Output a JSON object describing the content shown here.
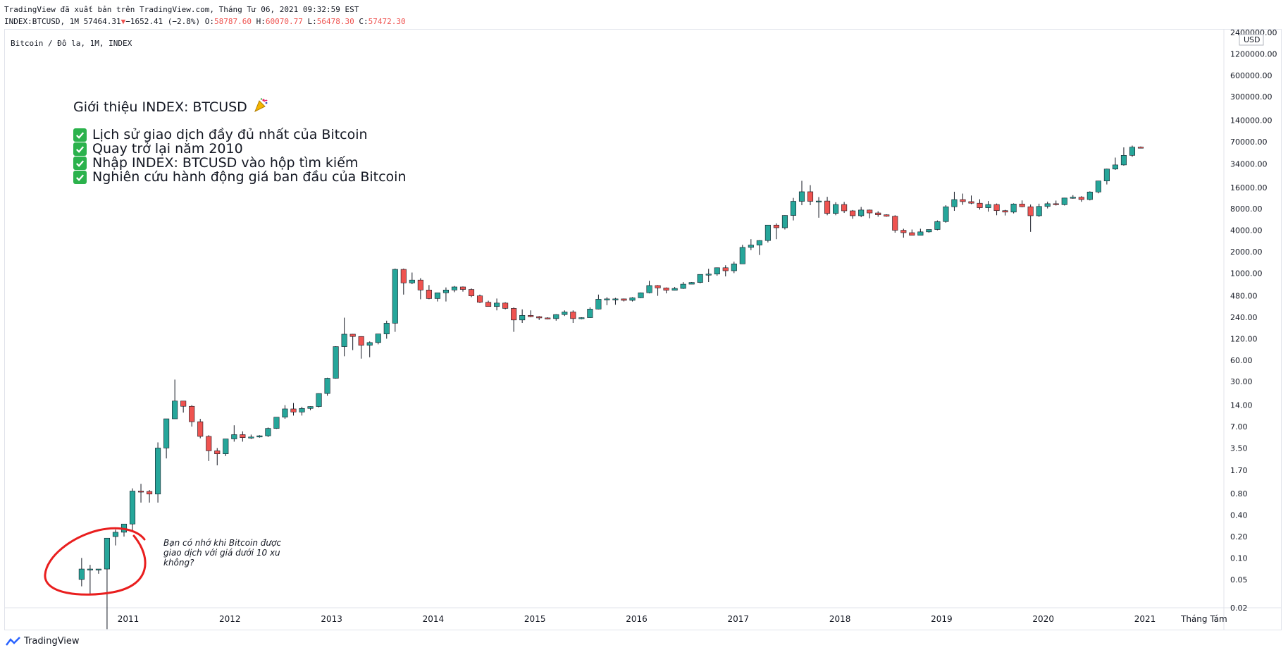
{
  "header": {
    "line1": "TradingView đã xuất bản trên TradingView.com, Tháng Tư 06, 2021 09:32:59 EST",
    "symbol": "INDEX:BTCUSD, 1M 57464.31",
    "change": "−1652.41 (−2.8%)",
    "o_label": "O:",
    "o_value": "58787.60",
    "h_label": "H:",
    "h_value": "60070.77",
    "l_label": "L:",
    "l_value": "56478.30",
    "c_label": "C:",
    "c_value": "57472.30"
  },
  "symbol_description": "Bitcoin / Đô la, 1M, INDEX",
  "notes": {
    "title": "Giới thiệu INDEX: BTCUSD",
    "items": [
      "Lịch sử giao dịch đầy đủ nhất của Bitcoin",
      "Quay trở lại năm 2010",
      "Nhập INDEX: BTCUSD vào hộp tìm kiếm",
      "Nghiên cứu hành động giá ban đầu của Bitcoin"
    ]
  },
  "annotation": "Bạn có nhớ khi Bitcoin được giao dịch với giá dưới 10 xu không?",
  "footer": {
    "brand": "TradingView"
  },
  "colors": {
    "up": "#26a69a",
    "down": "#ef5350",
    "circle": "#e91e1e",
    "grid": "#e0e3eb"
  },
  "chart_data": {
    "type": "candlestick",
    "title": "Bitcoin / Đô la, 1M, INDEX",
    "yscale": "log",
    "ylim": [
      0.02,
      2400000
    ],
    "currency_label": "USD",
    "x_tick_labels": [
      "2011",
      "2012",
      "2013",
      "2014",
      "2015",
      "2016",
      "2017",
      "2018",
      "2019",
      "2020",
      "2021"
    ],
    "x_extra_label": "Tháng Tám",
    "y_tick_labels": [
      "2400000.00",
      "1200000.00",
      "600000.00",
      "300000.00",
      "140000.00",
      "70000.00",
      "34000.00",
      "16000.00",
      "8000.00",
      "4000.00",
      "2000.00",
      "1000.00",
      "480.00",
      "240.00",
      "120.00",
      "60.00",
      "30.00",
      "14.00",
      "7.00",
      "3.50",
      "1.70",
      "0.80",
      "0.40",
      "0.20",
      "0.10",
      "0.05",
      "0.02"
    ],
    "start_month": "2010-07",
    "candles": [
      [
        0.05,
        0.1,
        0.04,
        0.07
      ],
      [
        0.07,
        0.08,
        0.03,
        0.07
      ],
      [
        0.07,
        0.07,
        0.06,
        0.07
      ],
      [
        0.07,
        0.19,
        0.01,
        0.19
      ],
      [
        0.2,
        0.25,
        0.15,
        0.23
      ],
      [
        0.23,
        0.3,
        0.2,
        0.3
      ],
      [
        0.3,
        0.95,
        0.24,
        0.87
      ],
      [
        0.87,
        1.1,
        0.6,
        0.86
      ],
      [
        0.86,
        0.9,
        0.6,
        0.79
      ],
      [
        0.79,
        4.2,
        0.6,
        3.5
      ],
      [
        3.5,
        9.0,
        2.5,
        9.0
      ],
      [
        9.0,
        32.0,
        9.0,
        16.0
      ],
      [
        16.0,
        16.0,
        11.0,
        13.5
      ],
      [
        13.5,
        14.0,
        7.0,
        8.2
      ],
      [
        8.2,
        9.0,
        4.8,
        5.1
      ],
      [
        5.1,
        5.3,
        2.3,
        3.2
      ],
      [
        3.2,
        3.5,
        2.0,
        2.9
      ],
      [
        2.9,
        4.5,
        2.7,
        4.7
      ],
      [
        4.7,
        7.3,
        4.3,
        5.4
      ],
      [
        5.4,
        6.0,
        4.3,
        4.9
      ],
      [
        4.9,
        5.4,
        4.7,
        5.0
      ],
      [
        5.0,
        5.3,
        4.9,
        5.2
      ],
      [
        5.2,
        6.8,
        5.0,
        6.6
      ],
      [
        6.6,
        9.0,
        6.5,
        9.5
      ],
      [
        9.5,
        14.0,
        9.0,
        12.4
      ],
      [
        12.4,
        15.0,
        10.0,
        11.2
      ],
      [
        11.2,
        13.3,
        10.0,
        12.6
      ],
      [
        12.6,
        13.5,
        11.9,
        13.4
      ],
      [
        13.4,
        20.5,
        13.0,
        20.4
      ],
      [
        20.4,
        34.0,
        19.0,
        33.4
      ],
      [
        33.4,
        94.0,
        33.0,
        93.0
      ],
      [
        93.0,
        237.0,
        68.0,
        139.0
      ],
      [
        139.0,
        140.0,
        83.0,
        129.0
      ],
      [
        129.0,
        130.0,
        63.0,
        97.0
      ],
      [
        97.0,
        110.0,
        66.0,
        106.0
      ],
      [
        106.0,
        140.0,
        100.0,
        140.0
      ],
      [
        140.0,
        215.0,
        120.0,
        198.0
      ],
      [
        198.0,
        1160.0,
        150.0,
        1130.0
      ],
      [
        1130.0,
        1160.0,
        500.0,
        730.0
      ],
      [
        730.0,
        1020.0,
        700.0,
        800.0
      ],
      [
        800.0,
        850.0,
        430.0,
        580.0
      ],
      [
        580.0,
        680.0,
        430.0,
        440.0
      ],
      [
        440.0,
        530.0,
        400.0,
        530.0
      ],
      [
        530.0,
        630.0,
        400.0,
        580.0
      ],
      [
        580.0,
        660.0,
        540.0,
        640.0
      ],
      [
        640.0,
        650.0,
        550.0,
        590.0
      ],
      [
        590.0,
        610.0,
        460.0,
        480.0
      ],
      [
        480.0,
        500.0,
        380.0,
        390.0
      ],
      [
        390.0,
        410.0,
        340.0,
        340.0
      ],
      [
        340.0,
        440.0,
        300.0,
        380.0
      ],
      [
        380.0,
        390.0,
        310.0,
        320.0
      ],
      [
        320.0,
        330.0,
        150.0,
        220.0
      ],
      [
        220.0,
        310.0,
        200.0,
        255.0
      ],
      [
        255.0,
        300.0,
        240.0,
        245.0
      ],
      [
        245.0,
        250.0,
        220.0,
        235.0
      ],
      [
        235.0,
        240.0,
        225.0,
        230.0
      ],
      [
        230.0,
        265.0,
        215.0,
        262.0
      ],
      [
        262.0,
        300.0,
        250.0,
        285.0
      ],
      [
        285.0,
        300.0,
        200.0,
        230.0
      ],
      [
        230.0,
        240.0,
        225.0,
        237.0
      ],
      [
        237.0,
        330.0,
        235.0,
        313.0
      ],
      [
        313.0,
        500.0,
        310.0,
        430.0
      ],
      [
        430.0,
        460.0,
        355.0,
        435.0
      ],
      [
        435.0,
        450.0,
        360.0,
        435.0
      ],
      [
        435.0,
        440.0,
        400.0,
        415.0
      ],
      [
        415.0,
        460.0,
        400.0,
        450.0
      ],
      [
        450.0,
        535.0,
        445.0,
        530.0
      ],
      [
        530.0,
        780.0,
        520.0,
        670.0
      ],
      [
        670.0,
        680.0,
        480.0,
        620.0
      ],
      [
        620.0,
        630.0,
        520.0,
        575.0
      ],
      [
        575.0,
        640.0,
        570.0,
        610.0
      ],
      [
        610.0,
        750.0,
        600.0,
        700.0
      ],
      [
        700.0,
        750.0,
        700.0,
        740.0
      ],
      [
        740.0,
        960.0,
        720.0,
        960.0
      ],
      [
        960.0,
        1150.0,
        750.0,
        970.0
      ],
      [
        970.0,
        1200.0,
        920.0,
        1190.0
      ],
      [
        1190.0,
        1290.0,
        900.0,
        1080.0
      ],
      [
        1080.0,
        1450.0,
        1000.0,
        1350.0
      ],
      [
        1350.0,
        2500.0,
        1350.0,
        2300.0
      ],
      [
        2300.0,
        3000.0,
        2100.0,
        2480.0
      ],
      [
        2480.0,
        2900.0,
        1800.0,
        2870.0
      ],
      [
        2870.0,
        4700.0,
        2700.0,
        4730.0
      ],
      [
        4730.0,
        5000.0,
        3000.0,
        4340.0
      ],
      [
        4340.0,
        6500.0,
        4100.0,
        6460.0
      ],
      [
        6460.0,
        11400.0,
        5500.0,
        10200.0
      ],
      [
        10200.0,
        19800.0,
        9000.0,
        13900.0
      ],
      [
        13900.0,
        17200.0,
        9000.0,
        10200.0
      ],
      [
        10200.0,
        11700.0,
        6000.0,
        10300.0
      ],
      [
        10300.0,
        11800.0,
        6500.0,
        6900.0
      ],
      [
        6900.0,
        9900.0,
        6500.0,
        9200.0
      ],
      [
        9200.0,
        10000.0,
        7000.0,
        7500.0
      ],
      [
        7500.0,
        7700.0,
        5800.0,
        6400.0
      ],
      [
        6400.0,
        8500.0,
        6100.0,
        7700.0
      ],
      [
        7700.0,
        7800.0,
        5900.0,
        7000.0
      ],
      [
        7000.0,
        7400.0,
        6200.0,
        6600.0
      ],
      [
        6600.0,
        6700.0,
        6200.0,
        6300.0
      ],
      [
        6300.0,
        6500.0,
        3700.0,
        4000.0
      ],
      [
        4000.0,
        4200.0,
        3150.0,
        3700.0
      ],
      [
        3700.0,
        4100.0,
        3400.0,
        3400.0
      ],
      [
        3400.0,
        4200.0,
        3400.0,
        3800.0
      ],
      [
        3800.0,
        4100.0,
        3700.0,
        4100.0
      ],
      [
        4100.0,
        5500.0,
        4000.0,
        5300.0
      ],
      [
        5300.0,
        9000.0,
        5100.0,
        8550.0
      ],
      [
        8550.0,
        13900.0,
        7500.0,
        10800.0
      ],
      [
        10800.0,
        13100.0,
        9100.0,
        10100.0
      ],
      [
        10100.0,
        12300.0,
        9300.0,
        9600.0
      ],
      [
        9600.0,
        10900.0,
        7800.0,
        8300.0
      ],
      [
        8300.0,
        10300.0,
        7300.0,
        9200.0
      ],
      [
        9200.0,
        9500.0,
        6500.0,
        7550.0
      ],
      [
        7550.0,
        7750.0,
        6450.0,
        7200.0
      ],
      [
        7200.0,
        9550.0,
        6900.0,
        9350.0
      ],
      [
        9350.0,
        10500.0,
        8400.0,
        8550.0
      ],
      [
        8550.0,
        9200.0,
        3800.0,
        6400.0
      ],
      [
        6400.0,
        9450.0,
        6150.0,
        8650.0
      ],
      [
        8650.0,
        10100.0,
        8100.0,
        9450.0
      ],
      [
        9450.0,
        10450.0,
        8900.0,
        9150.0
      ],
      [
        9150.0,
        11450.0,
        8900.0,
        11350.0
      ],
      [
        11350.0,
        12450.0,
        11100.0,
        11650.0
      ],
      [
        11650.0,
        12050.0,
        10050.0,
        10800.0
      ],
      [
        10800.0,
        14100.0,
        10500.0,
        13800.0
      ],
      [
        13800.0,
        19800.0,
        13200.0,
        19700.0
      ],
      [
        19700.0,
        29300.0,
        17600.0,
        28950.0
      ],
      [
        28950.0,
        41950.0,
        28150.0,
        33100.0
      ],
      [
        33100.0,
        58350.0,
        32300.0,
        45100.0
      ],
      [
        45100.0,
        61800.0,
        43000.0,
        58800.0
      ],
      [
        58787.6,
        60070.77,
        56478.3,
        57472.3
      ]
    ]
  }
}
